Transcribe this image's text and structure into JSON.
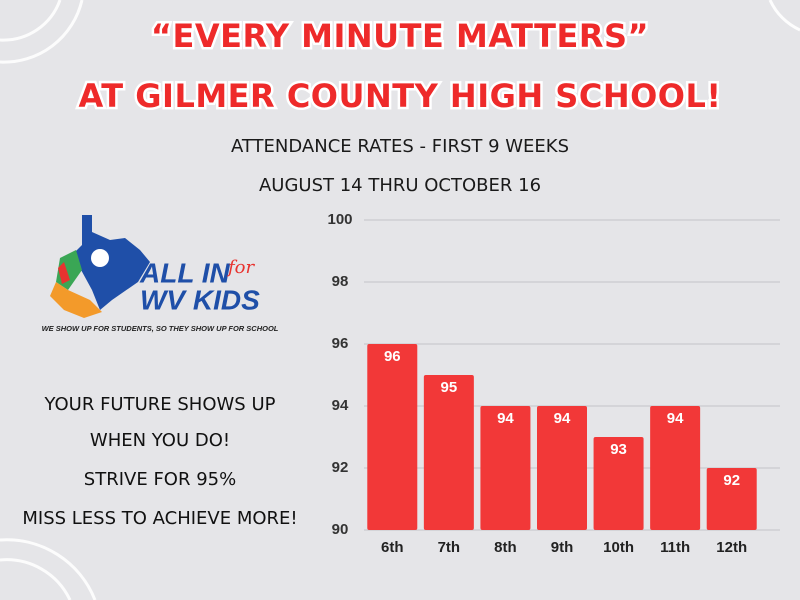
{
  "header": {
    "title_lines": [
      "“EVERY MINUTE MATTERS”",
      "AT GILMER COUNTY HIGH SCHOOL!"
    ],
    "subtitle_lines": [
      "ATTENDANCE RATES - FIRST 9 WEEKS",
      "AUGUST 14 THRU OCTOBER 16"
    ]
  },
  "logo": {
    "line1": "ALL IN",
    "script": "for",
    "line2": "WV KIDS",
    "tagline": "WE SHOW UP FOR STUDENTS, SO THEY SHOW UP FOR SCHOOL"
  },
  "slogan": {
    "lines": [
      "YOUR FUTURE SHOWS UP",
      "WHEN YOU DO!",
      "STRIVE FOR 95%",
      "MISS LESS TO ACHIEVE MORE!"
    ]
  },
  "chart_data": {
    "type": "bar",
    "categories": [
      "6th",
      "7th",
      "8th",
      "9th",
      "10th",
      "11th",
      "12th"
    ],
    "values": [
      96,
      95,
      94,
      94,
      93,
      94,
      92
    ],
    "color": "#f23838",
    "ylim": [
      90,
      100
    ],
    "yticks": [
      90,
      92,
      94,
      96,
      98,
      100
    ],
    "grid": true
  }
}
